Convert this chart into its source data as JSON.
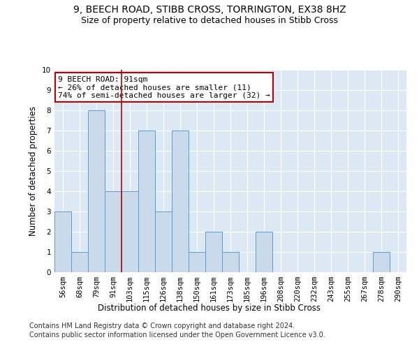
{
  "title": "9, BEECH ROAD, STIBB CROSS, TORRINGTON, EX38 8HZ",
  "subtitle": "Size of property relative to detached houses in Stibb Cross",
  "xlabel": "Distribution of detached houses by size in Stibb Cross",
  "ylabel": "Number of detached properties",
  "categories": [
    "56sqm",
    "68sqm",
    "79sqm",
    "91sqm",
    "103sqm",
    "115sqm",
    "126sqm",
    "138sqm",
    "150sqm",
    "161sqm",
    "173sqm",
    "185sqm",
    "196sqm",
    "208sqm",
    "220sqm",
    "232sqm",
    "243sqm",
    "255sqm",
    "267sqm",
    "278sqm",
    "290sqm"
  ],
  "values": [
    3,
    1,
    8,
    4,
    4,
    7,
    3,
    7,
    1,
    2,
    1,
    0,
    2,
    0,
    0,
    0,
    0,
    0,
    0,
    1,
    0
  ],
  "bar_color": "#c9daea",
  "bar_edge_color": "#5b9bd5",
  "highlight_index": 3,
  "highlight_line_color": "#c00000",
  "highlight_box_color": "#c00000",
  "annotation_line1": "9 BEECH ROAD: 91sqm",
  "annotation_line2": "← 26% of detached houses are smaller (11)",
  "annotation_line3": "74% of semi-detached houses are larger (32) →",
  "ylim": [
    0,
    10
  ],
  "yticks": [
    0,
    1,
    2,
    3,
    4,
    5,
    6,
    7,
    8,
    9,
    10
  ],
  "background_color": "#dce9f5",
  "grid_color": "#ffffff",
  "footer1": "Contains HM Land Registry data © Crown copyright and database right 2024.",
  "footer2": "Contains public sector information licensed under the Open Government Licence v3.0.",
  "title_fontsize": 10,
  "subtitle_fontsize": 9,
  "axis_label_fontsize": 8.5,
  "tick_fontsize": 7.5,
  "annotation_fontsize": 8,
  "footer_fontsize": 7
}
